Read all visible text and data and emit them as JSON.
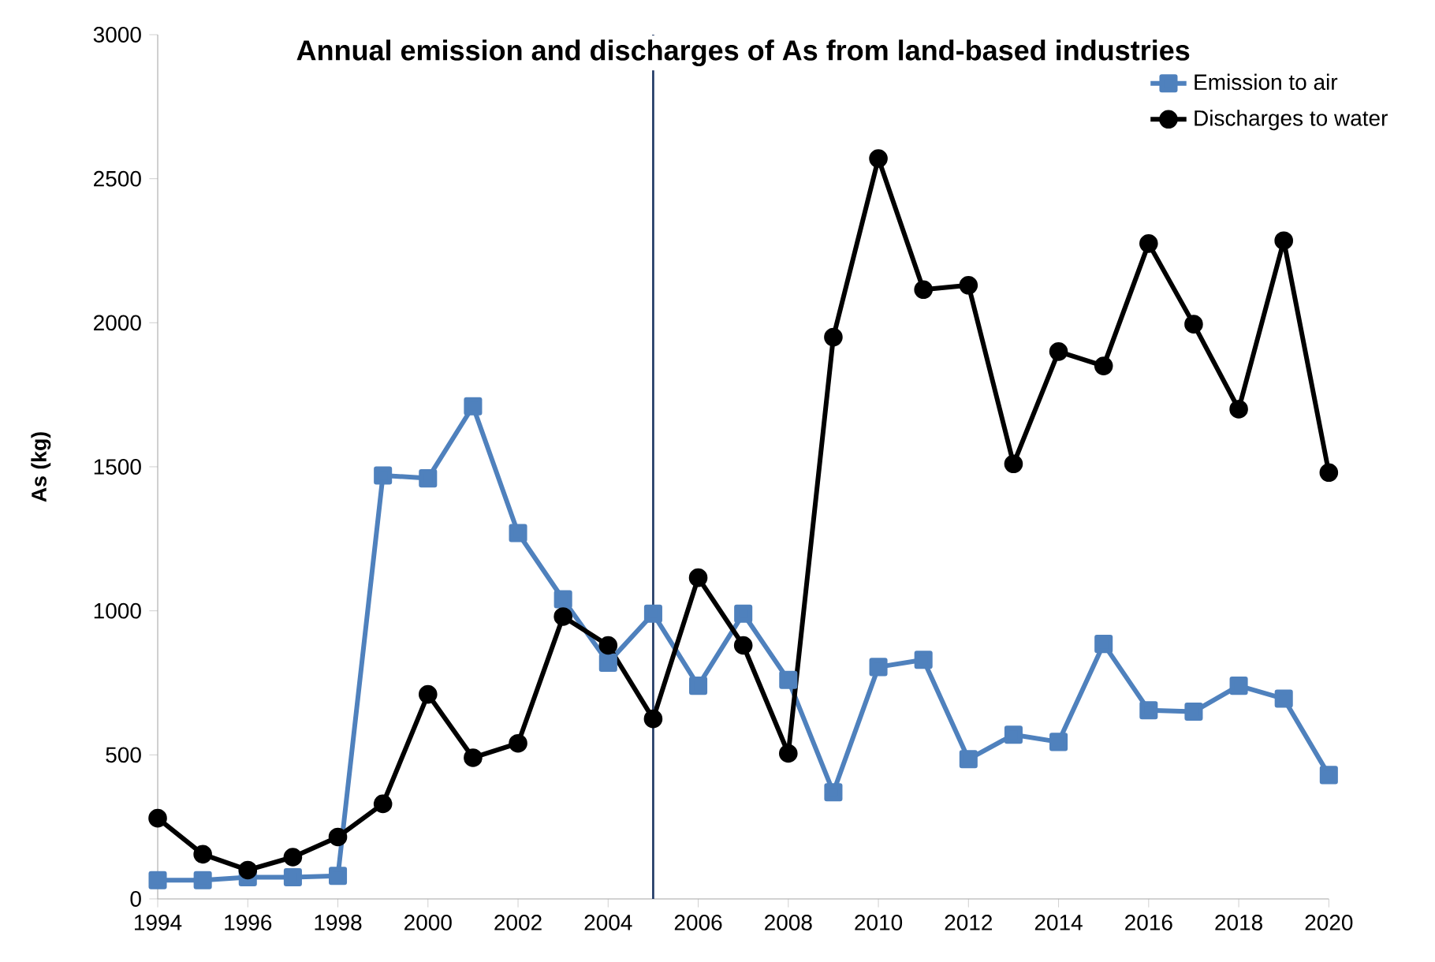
{
  "chart_data": {
    "type": "line",
    "title": "Annual emission and discharges of As from land-based industries",
    "ylabel": "As (kg)",
    "x": [
      1994,
      1995,
      1996,
      1997,
      1998,
      1999,
      2000,
      2001,
      2002,
      2003,
      2004,
      2005,
      2006,
      2007,
      2008,
      2009,
      2010,
      2011,
      2012,
      2013,
      2014,
      2015,
      2016,
      2017,
      2018,
      2019,
      2020
    ],
    "series": [
      {
        "name": "Emission to air",
        "color": "#4f81bd",
        "marker": "square",
        "values": [
          65,
          65,
          75,
          75,
          80,
          1470,
          1460,
          1710,
          1270,
          1040,
          820,
          990,
          740,
          990,
          760,
          370,
          805,
          830,
          485,
          570,
          545,
          885,
          655,
          650,
          740,
          695,
          430
        ]
      },
      {
        "name": "Discharges to water",
        "color": "#000000",
        "marker": "circle",
        "values": [
          280,
          155,
          100,
          145,
          215,
          330,
          710,
          490,
          540,
          980,
          880,
          625,
          1115,
          880,
          505,
          1950,
          2570,
          2115,
          2130,
          1510,
          1900,
          1850,
          2275,
          1995,
          1700,
          2285,
          1480
        ]
      }
    ],
    "xlim": [
      1994,
      2020
    ],
    "xticks": [
      1994,
      1996,
      1998,
      2000,
      2002,
      2004,
      2006,
      2008,
      2010,
      2012,
      2014,
      2016,
      2018,
      2020
    ],
    "ylim": [
      0,
      3000
    ],
    "yticks": [
      0,
      500,
      1000,
      1500,
      2000,
      2500,
      3000
    ],
    "ref_lines": [
      {
        "axis": "x",
        "value": 2005,
        "color": "#1f3864"
      }
    ],
    "legend": "top right",
    "line_style": "solid",
    "grid": false
  }
}
